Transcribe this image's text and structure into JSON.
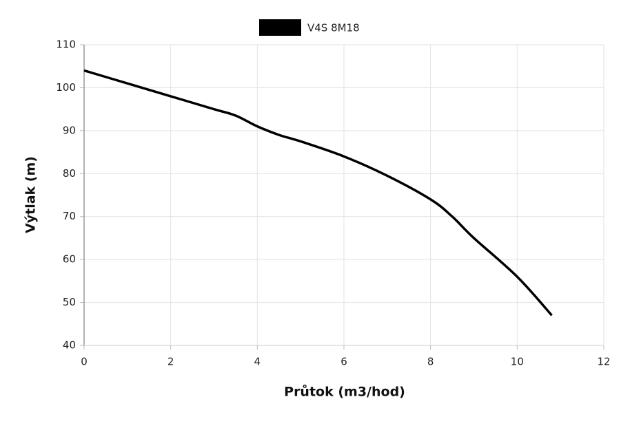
{
  "chart_data": {
    "type": "line",
    "x_label": "Průtok (m3/hod)",
    "y_label": "Výtlak (m)",
    "x": [
      0,
      1,
      2,
      3,
      3.5,
      4,
      4.5,
      5,
      6,
      7,
      8,
      8.5,
      9,
      10,
      10.8
    ],
    "series": [
      {
        "name": "V4S 8M18",
        "color": "#000000",
        "values": [
          104,
          101,
          98,
          95,
          93.5,
          91,
          89,
          87.5,
          84,
          79.5,
          74,
          70,
          65,
          56,
          47
        ]
      }
    ],
    "xlim": [
      0,
      12
    ],
    "xticks": [
      0,
      2,
      4,
      6,
      8,
      10,
      12
    ],
    "ylim": [
      40,
      110
    ],
    "yticks": [
      40,
      50,
      60,
      70,
      80,
      90,
      100,
      110
    ],
    "grid": true
  }
}
